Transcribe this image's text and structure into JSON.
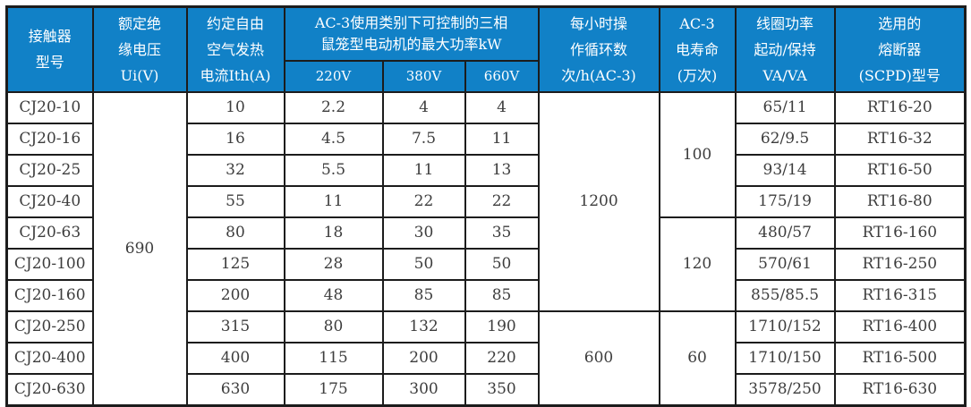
{
  "colors": {
    "header_bg": "#1181c7",
    "header_text": "#ffffff",
    "border": "#1c1c1c",
    "body_text": "#3d3d3d",
    "page_bg": "#ffffff"
  },
  "table": {
    "header": {
      "contactor_model": "接触器\n型号",
      "rated_insulation_voltage": "额定绝\n缘电压\nUi(V)",
      "thermal_current": "约定自由\n空气发热\n电流Ith(A)",
      "ac3_power_group": "AC-3使用类别下可控制的三相\n鼠笼型电动机的最大功率kW",
      "v220": "220V",
      "v380": "380V",
      "v660": "660V",
      "operating_cycles": "每小时操\n作循环数\n次/h(AC-3)",
      "ac3_life": "AC-3\n电寿命\n(万次)",
      "coil_power": "线圈功率\n起动/保持\nVA/VA",
      "fuse": "选用的\n熔断器\n(SCPD)型号"
    },
    "rows": [
      [
        {
          "t": "CJ20-10",
          "n": "model-cell"
        },
        {
          "t": "690",
          "rs": 10,
          "n": "merged-insulation-voltage-cell"
        },
        "10",
        "2.2",
        "4",
        "4",
        {
          "t": "1200",
          "rs": 7,
          "n": "merged-cycles-cell"
        },
        {
          "t": "100",
          "rs": 4,
          "n": "merged-life-cell"
        },
        "65/11",
        "RT16-20"
      ],
      [
        {
          "t": "CJ20-16",
          "n": "model-cell"
        },
        "16",
        "4.5",
        "7.5",
        "11",
        "62/9.5",
        "RT16-32"
      ],
      [
        {
          "t": "CJ20-25",
          "n": "model-cell"
        },
        "32",
        "5.5",
        "11",
        "13",
        "93/14",
        "RT16-50"
      ],
      [
        {
          "t": "CJ20-40",
          "n": "model-cell"
        },
        "55",
        "11",
        "22",
        "22",
        "175/19",
        "RT16-80"
      ],
      [
        {
          "t": "CJ20-63",
          "n": "model-cell"
        },
        "80",
        "18",
        "30",
        "35",
        {
          "t": "120",
          "rs": 3,
          "n": "merged-life-cell"
        },
        "480/57",
        "RT16-160"
      ],
      [
        {
          "t": "CJ20-100",
          "n": "model-cell"
        },
        "125",
        "28",
        "50",
        "50",
        "570/61",
        "RT16-250"
      ],
      [
        {
          "t": "CJ20-160",
          "n": "model-cell"
        },
        "200",
        "48",
        "85",
        "85",
        "855/85.5",
        "RT16-315"
      ],
      [
        {
          "t": "CJ20-250",
          "n": "model-cell"
        },
        "315",
        "80",
        "132",
        "190",
        {
          "t": "600",
          "rs": 3,
          "n": "merged-cycles-cell"
        },
        {
          "t": "60",
          "rs": 3,
          "n": "merged-life-cell"
        },
        "1710/152",
        "RT16-400"
      ],
      [
        {
          "t": "CJ20-400",
          "n": "model-cell"
        },
        "400",
        "115",
        "200",
        "220",
        "1710/150",
        "RT16-500"
      ],
      [
        {
          "t": "CJ20-630",
          "n": "model-cell"
        },
        "630",
        "175",
        "300",
        "350",
        "3578/250",
        "RT16-630"
      ]
    ]
  }
}
